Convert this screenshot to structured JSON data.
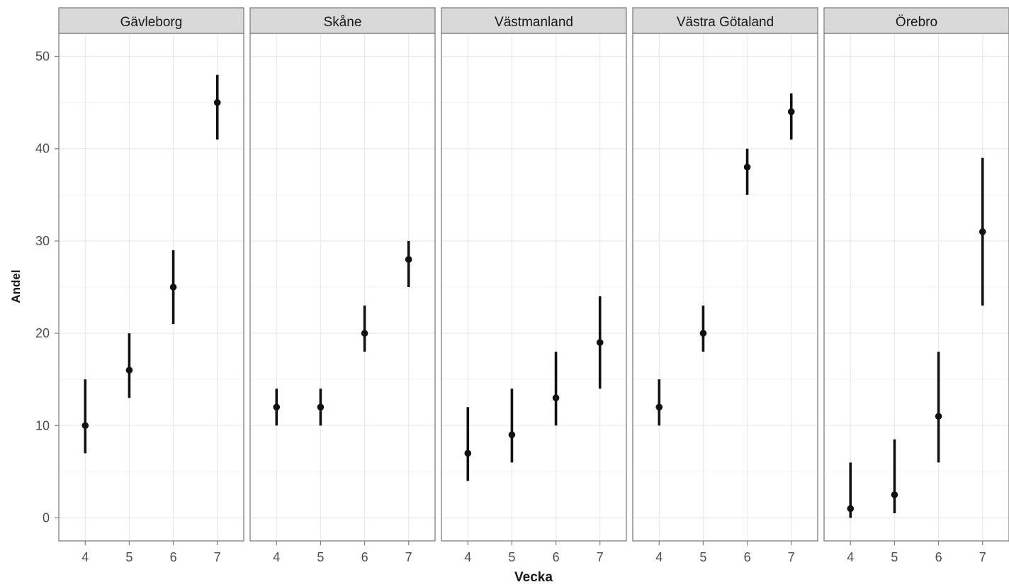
{
  "chart_data": {
    "type": "scatter",
    "subtype": "point-range faceted",
    "xlabel": "Vecka",
    "ylabel": "Andel",
    "x_ticks": [
      4,
      5,
      6,
      7
    ],
    "y_ticks": [
      0,
      10,
      20,
      30,
      40,
      50
    ],
    "ylim": [
      -2.5,
      52.5
    ],
    "xlim": [
      3.4,
      7.6
    ],
    "grid": true,
    "colors": {
      "panel_border": "#7f7f7f",
      "strip_fill": "#d9d9d9",
      "grid": "#ebebeb",
      "point": "#111111",
      "tick_text": "#4d4d4d"
    },
    "facets": [
      {
        "name": "Gävleborg",
        "points": [
          {
            "x": 4,
            "y": 10,
            "low": 7,
            "high": 15
          },
          {
            "x": 5,
            "y": 16,
            "low": 13,
            "high": 20
          },
          {
            "x": 6,
            "y": 25,
            "low": 21,
            "high": 29
          },
          {
            "x": 7,
            "y": 45,
            "low": 41,
            "high": 48
          }
        ]
      },
      {
        "name": "Skåne",
        "points": [
          {
            "x": 4,
            "y": 12,
            "low": 10,
            "high": 14
          },
          {
            "x": 5,
            "y": 12,
            "low": 10,
            "high": 14
          },
          {
            "x": 6,
            "y": 20,
            "low": 18,
            "high": 23
          },
          {
            "x": 7,
            "y": 28,
            "low": 25,
            "high": 30
          }
        ]
      },
      {
        "name": "Västmanland",
        "points": [
          {
            "x": 4,
            "y": 7,
            "low": 4,
            "high": 12
          },
          {
            "x": 5,
            "y": 9,
            "low": 6,
            "high": 14
          },
          {
            "x": 6,
            "y": 13,
            "low": 10,
            "high": 18
          },
          {
            "x": 7,
            "y": 19,
            "low": 14,
            "high": 24
          }
        ]
      },
      {
        "name": "Västra Götaland",
        "points": [
          {
            "x": 4,
            "y": 12,
            "low": 10,
            "high": 15
          },
          {
            "x": 5,
            "y": 20,
            "low": 18,
            "high": 23
          },
          {
            "x": 6,
            "y": 38,
            "low": 35,
            "high": 40
          },
          {
            "x": 7,
            "y": 44,
            "low": 41,
            "high": 46
          }
        ]
      },
      {
        "name": "Örebro",
        "points": [
          {
            "x": 4,
            "y": 1,
            "low": 0,
            "high": 6
          },
          {
            "x": 5,
            "y": 2.5,
            "low": 0.5,
            "high": 8.5
          },
          {
            "x": 6,
            "y": 11,
            "low": 6,
            "high": 18
          },
          {
            "x": 7,
            "y": 31,
            "low": 23,
            "high": 39
          }
        ]
      }
    ]
  }
}
